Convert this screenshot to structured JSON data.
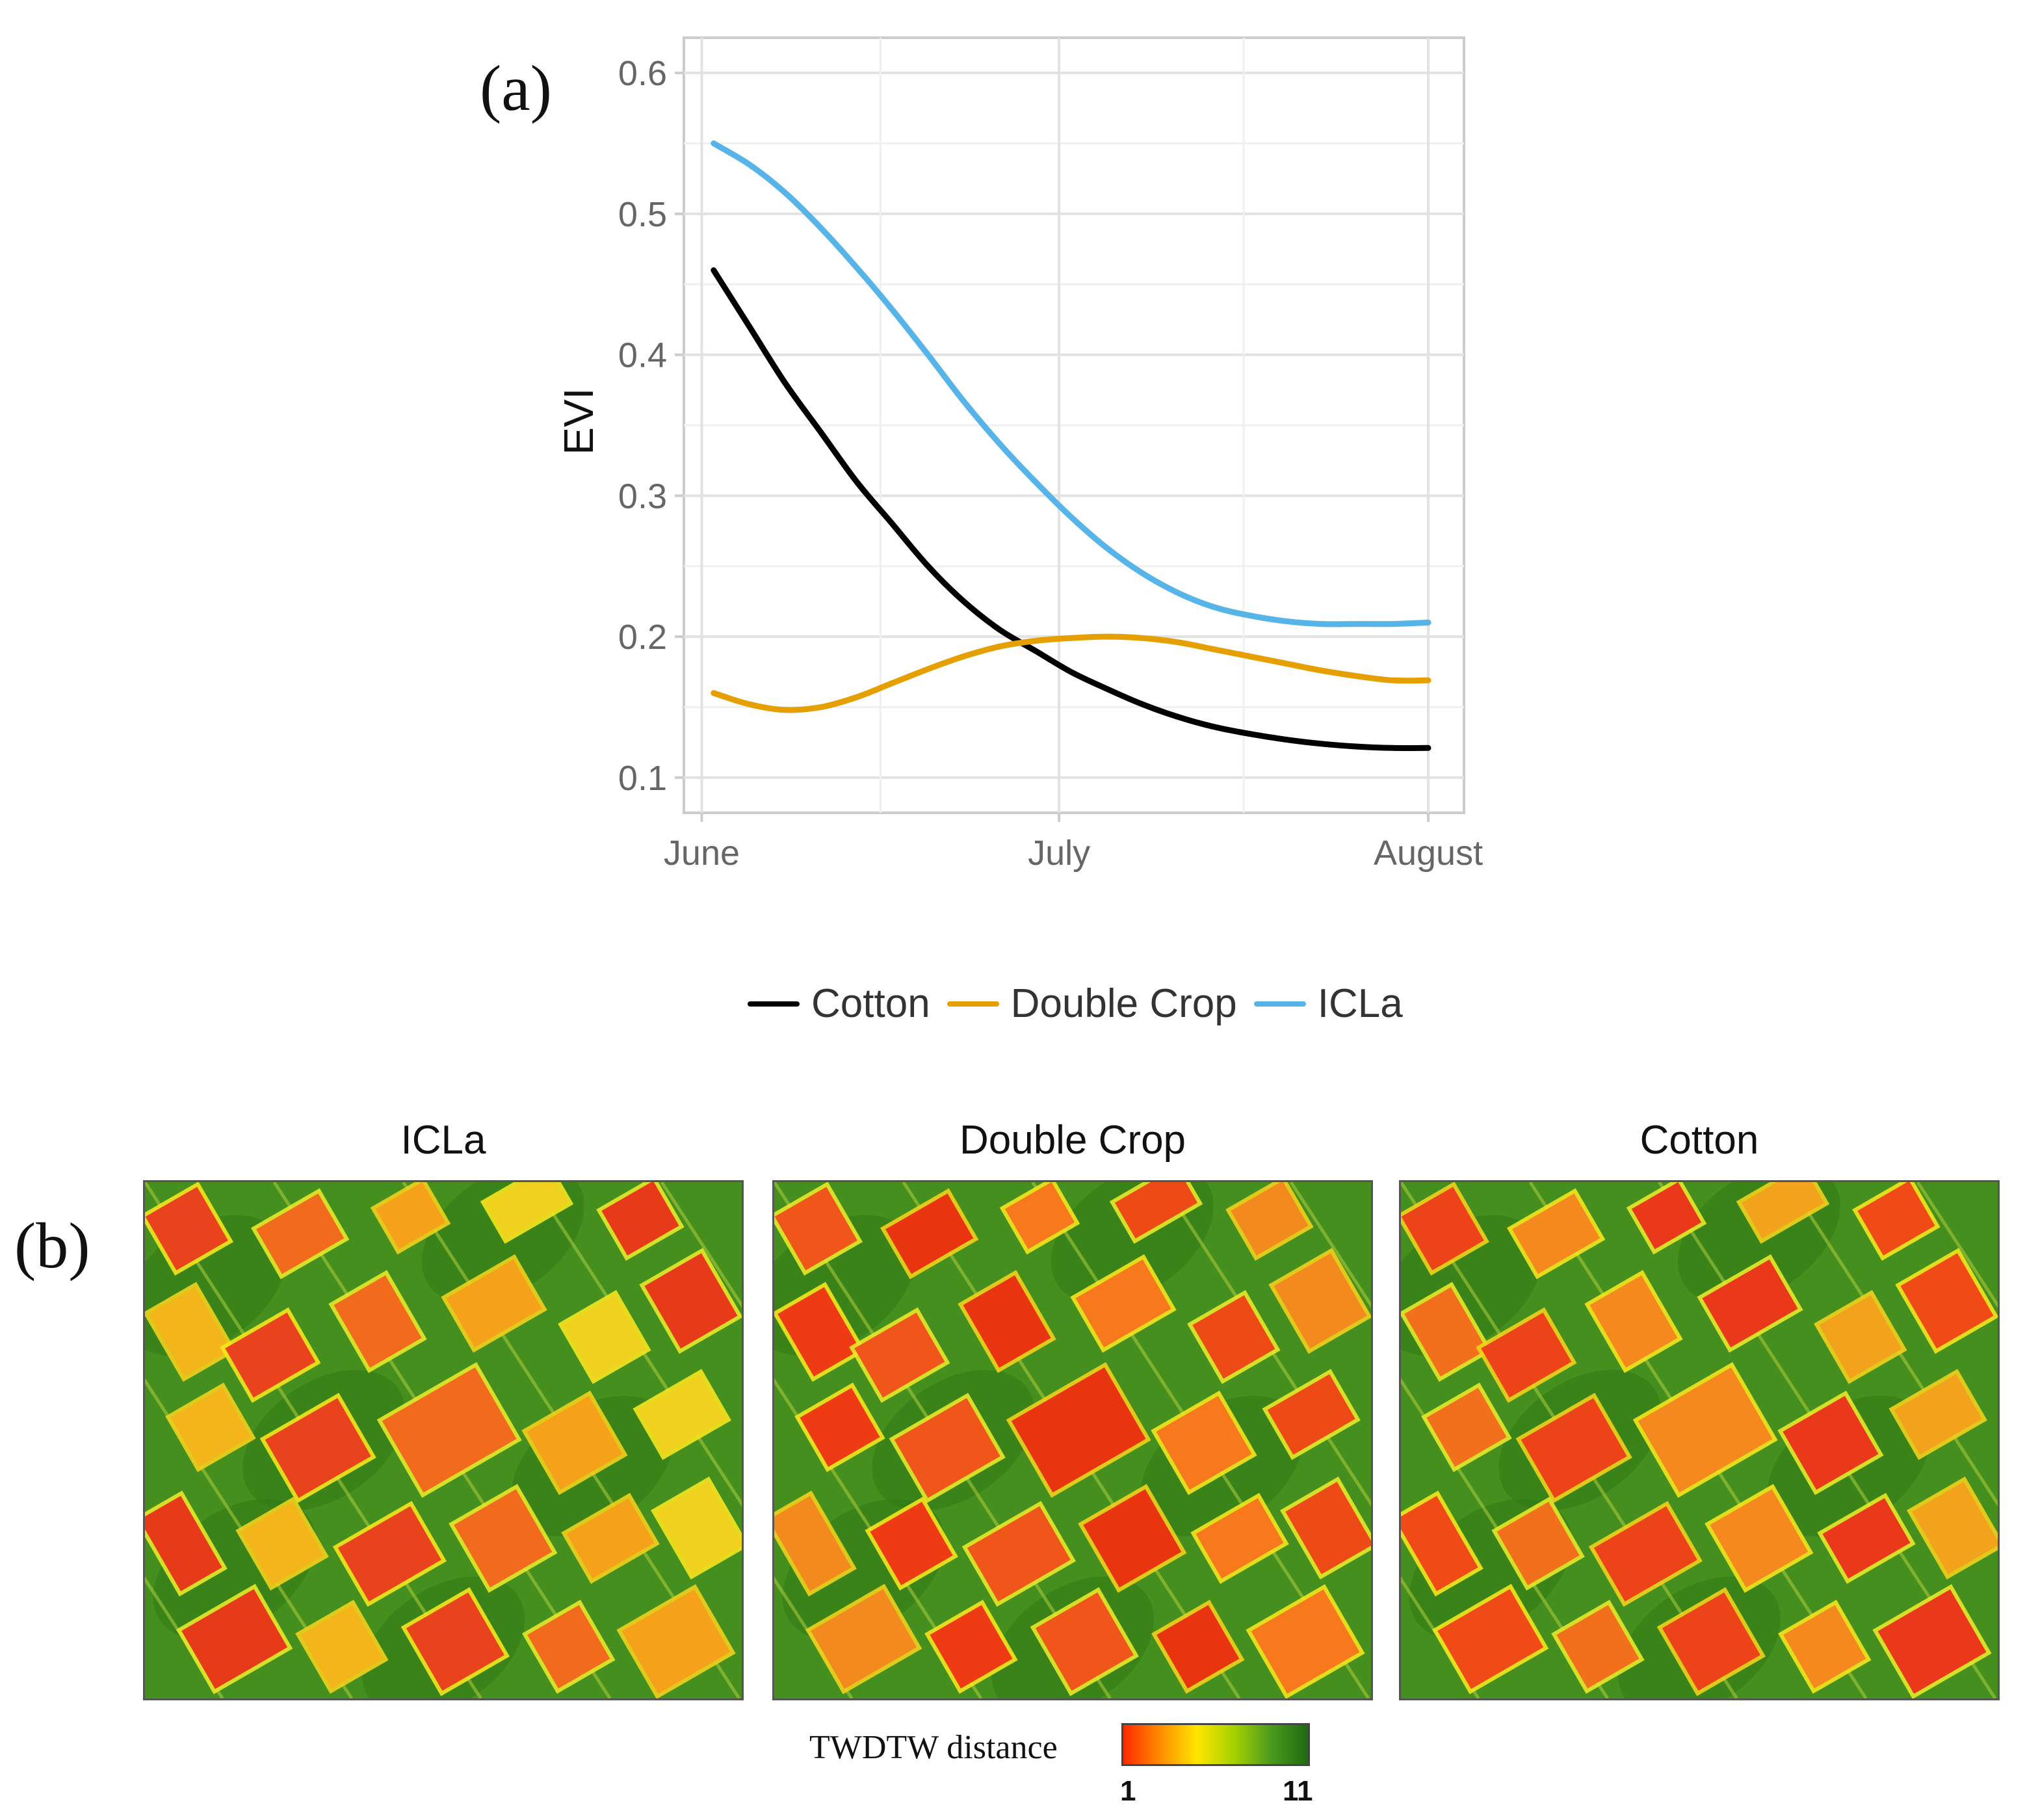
{
  "panel_labels": {
    "a": "(a)",
    "b": "(b)"
  },
  "colors": {
    "cotton": "#000000",
    "double_crop": "#e69f00",
    "icla": "#56b4e9"
  },
  "chart_data": {
    "type": "line",
    "title": "",
    "xlabel": "",
    "ylabel": "EVI",
    "x_ticks": [
      {
        "label": "June",
        "value": 0
      },
      {
        "label": "July",
        "value": 30
      },
      {
        "label": "August",
        "value": 61
      }
    ],
    "xlim": [
      -1.5,
      64
    ],
    "ylim": [
      0.075,
      0.625
    ],
    "y_ticks": [
      0.1,
      0.2,
      0.3,
      0.4,
      0.5,
      0.6
    ],
    "grid": true,
    "x": [
      1,
      4,
      7,
      10,
      13,
      16,
      19,
      22,
      25,
      28,
      31,
      34,
      37,
      40,
      43,
      46,
      49,
      52,
      55,
      58,
      61
    ],
    "series": [
      {
        "name": "Cotton",
        "color": "#000000",
        "values": [
          0.46,
          0.42,
          0.38,
          0.345,
          0.31,
          0.28,
          0.25,
          0.225,
          0.205,
          0.19,
          0.175,
          0.163,
          0.152,
          0.143,
          0.136,
          0.131,
          0.127,
          0.124,
          0.122,
          0.121,
          0.121
        ]
      },
      {
        "name": "Double Crop",
        "color": "#e69f00",
        "values": [
          0.16,
          0.152,
          0.148,
          0.15,
          0.157,
          0.167,
          0.177,
          0.186,
          0.193,
          0.197,
          0.199,
          0.2,
          0.199,
          0.196,
          0.191,
          0.186,
          0.181,
          0.176,
          0.172,
          0.169,
          0.169
        ]
      },
      {
        "name": "ICLa",
        "color": "#56b4e9",
        "values": [
          0.55,
          0.535,
          0.515,
          0.49,
          0.462,
          0.432,
          0.4,
          0.367,
          0.337,
          0.31,
          0.285,
          0.263,
          0.245,
          0.231,
          0.221,
          0.215,
          0.211,
          0.209,
          0.209,
          0.209,
          0.21
        ]
      }
    ],
    "legend_position": "bottom"
  },
  "legend": [
    {
      "label": "Cotton",
      "color": "#000000"
    },
    {
      "label": "Double Crop",
      "color": "#e69f00"
    },
    {
      "label": "ICLa",
      "color": "#56b4e9"
    }
  ],
  "maps": [
    {
      "title": "ICLa"
    },
    {
      "title": "Double Crop"
    },
    {
      "title": "Cotton"
    }
  ],
  "colorbar": {
    "title": "TWDTW distance",
    "min_label": "1",
    "max_label": "11",
    "gradient": [
      "#ff2a00",
      "#ff8c00",
      "#ffe600",
      "#a6d100",
      "#4b9a1e",
      "#1f6b12"
    ]
  }
}
